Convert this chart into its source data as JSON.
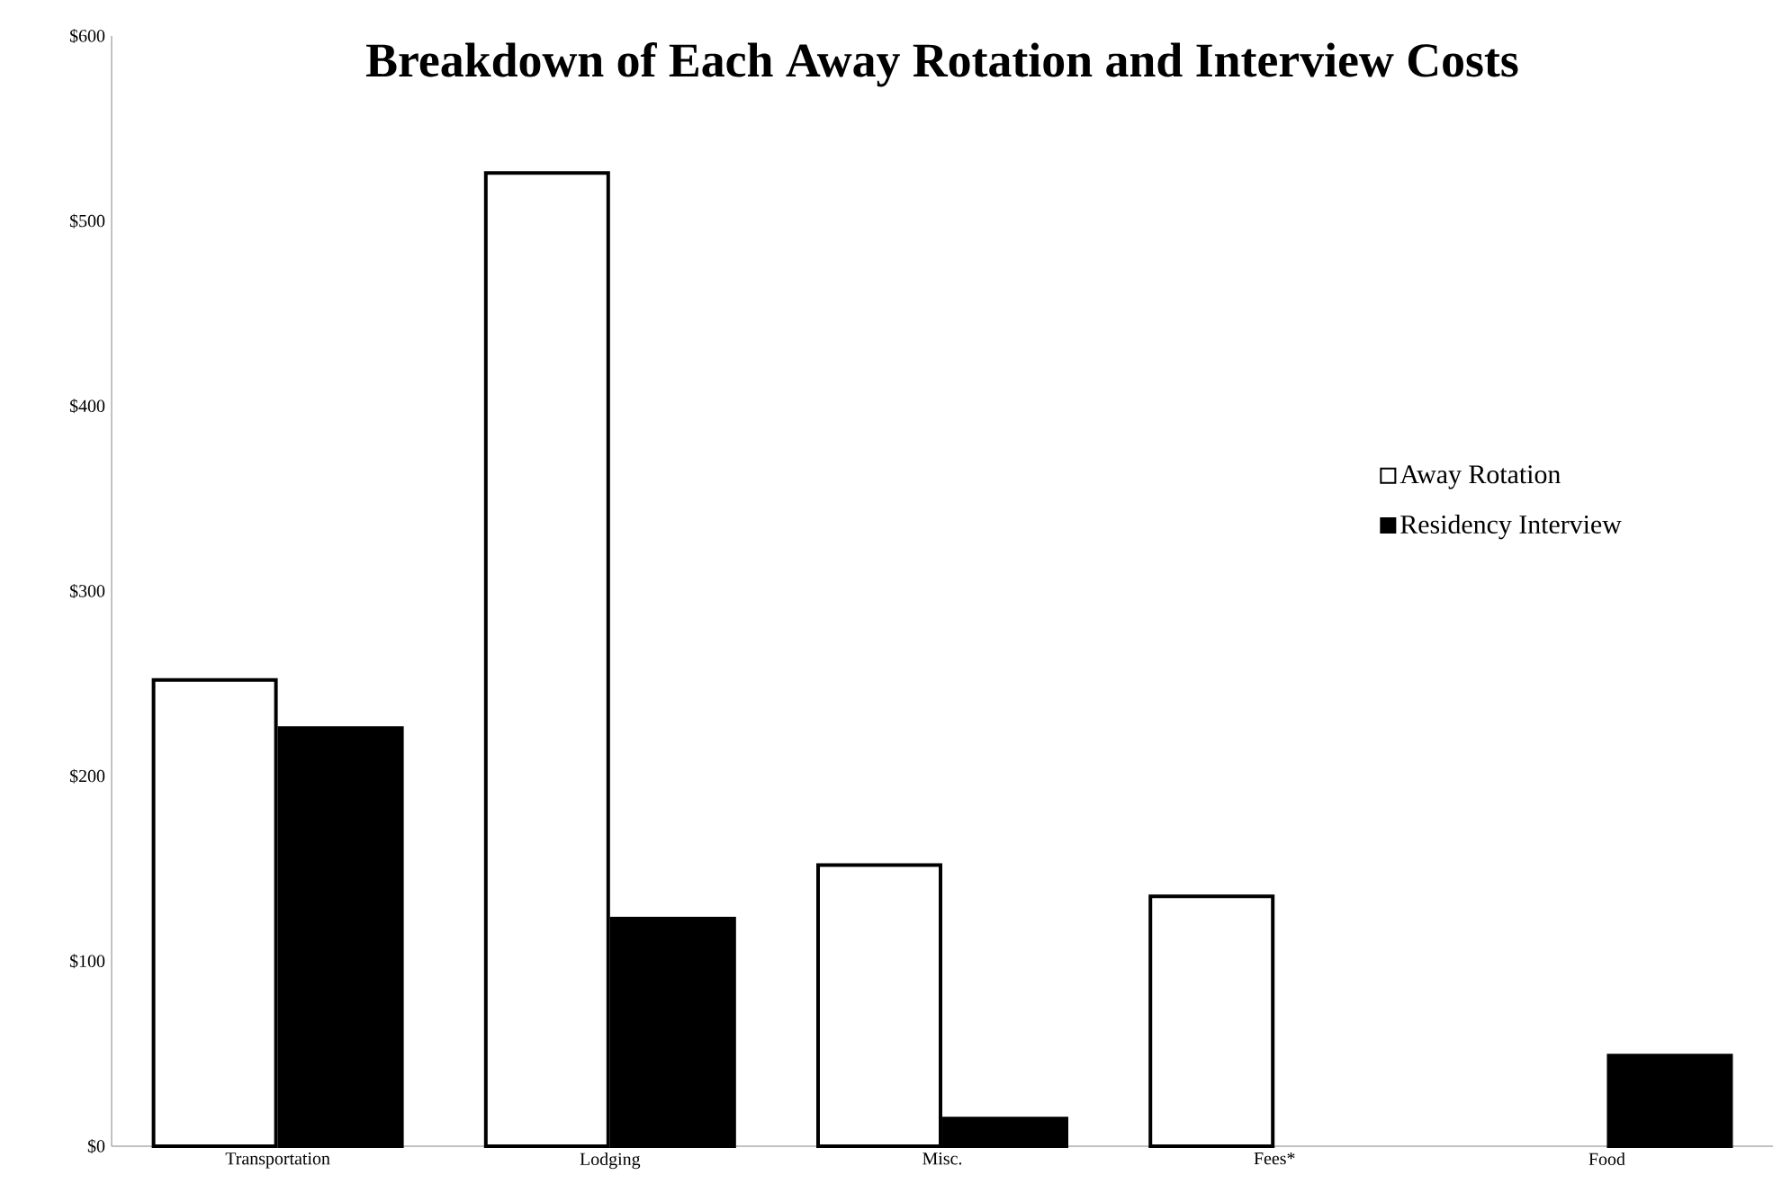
{
  "chart_data": {
    "type": "bar",
    "title": "Breakdown of Each Away Rotation and Interview Costs",
    "categories": [
      "Transportation",
      "Lodging",
      "Misc.",
      "Fees*",
      "Food"
    ],
    "series": [
      {
        "name": "Away Rotation",
        "color": "#ffffff",
        "values": [
          252,
          526,
          152,
          135,
          null
        ]
      },
      {
        "name": "Residency Interview",
        "color": "#000000",
        "values": [
          226,
          123,
          15,
          null,
          49
        ]
      }
    ],
    "ylim": [
      0,
      600
    ],
    "yticks": [
      {
        "value": 0,
        "label": "$0"
      },
      {
        "value": 100,
        "label": "$100"
      },
      {
        "value": 200,
        "label": "$200"
      },
      {
        "value": 300,
        "label": "$300"
      },
      {
        "value": 400,
        "label": "$400"
      },
      {
        "value": 500,
        "label": "$500"
      },
      {
        "value": 600,
        "label": "$600"
      }
    ],
    "legend": "right"
  }
}
